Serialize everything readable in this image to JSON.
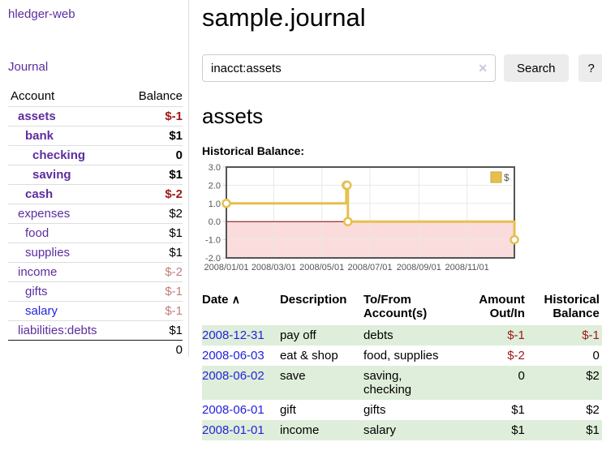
{
  "colors": {
    "accent_purple": "#5c2d9e",
    "link_blue": "#2323dd",
    "negative_strong": "#9e1818",
    "negative_pale": "#c27d7d",
    "row_green": "#deeeda",
    "chart_line": "#e6bf4e",
    "chart_border": "#545454",
    "zero_line": "#8b0000",
    "negative_region_fill": "#fbdcdc"
  },
  "sidebar": {
    "brand": "hledger-web",
    "nav_journal": "Journal",
    "table": {
      "account_header": "Account",
      "balance_header": "Balance",
      "rows": [
        {
          "name": "assets",
          "balance": "$-1",
          "level": 1,
          "bold": true,
          "balance_style": "neg-strong"
        },
        {
          "name": "bank",
          "balance": "$1",
          "level": 2,
          "bold": true,
          "balance_style": ""
        },
        {
          "name": "checking",
          "balance": "0",
          "level": 3,
          "bold": true,
          "balance_style": ""
        },
        {
          "name": "saving",
          "balance": "$1",
          "level": 3,
          "bold": true,
          "balance_style": ""
        },
        {
          "name": "cash",
          "balance": "$-2",
          "level": 2,
          "bold": true,
          "balance_style": "neg-strong"
        },
        {
          "name": "expenses",
          "balance": "$2",
          "level": 1,
          "bold": false,
          "balance_style": ""
        },
        {
          "name": "food",
          "balance": "$1",
          "level": 2,
          "bold": false,
          "balance_style": ""
        },
        {
          "name": "supplies",
          "balance": "$1",
          "level": 2,
          "bold": false,
          "balance_style": ""
        },
        {
          "name": "income",
          "balance": "$-2",
          "level": 1,
          "bold": false,
          "balance_style": "neg-pale"
        },
        {
          "name": "gifts",
          "balance": "$-1",
          "level": 2,
          "bold": false,
          "balance_style": "neg-pale"
        },
        {
          "name": "salary",
          "balance": "$-1",
          "level": 2,
          "bold": false,
          "balance_style": "neg-pale",
          "link_color": "blue"
        },
        {
          "name": "liabilities:debts",
          "balance": "$1",
          "level": 1,
          "bold": false,
          "balance_style": ""
        }
      ],
      "total": "0"
    }
  },
  "main": {
    "title": "sample.journal",
    "search": {
      "value": "inacct:assets",
      "clear_icon": "✕",
      "button_label": "Search",
      "help_label": "?"
    },
    "account_heading": "assets",
    "chart_label": "Historical Balance:"
  },
  "chart_data": {
    "type": "line",
    "title": "Historical Balance",
    "step": true,
    "series": [
      {
        "name": "$",
        "color": "#e6bf4e",
        "points": [
          [
            "2008-01-01",
            1
          ],
          [
            "2008-06-01",
            2
          ],
          [
            "2008-06-02",
            2
          ],
          [
            "2008-06-03",
            0
          ],
          [
            "2008-12-31",
            -1
          ]
        ]
      }
    ],
    "x_range": [
      "2008-01-01",
      "2008-12-31"
    ],
    "ylim": [
      -2,
      3
    ],
    "y_ticks": [
      3,
      2,
      1,
      0,
      -1,
      -2
    ],
    "y_tick_labels": [
      "3.0",
      "2.0",
      "1.0",
      "0.0",
      "-1.0",
      "-2.0"
    ],
    "x_ticks": [
      "2008-01-01",
      "2008-03-01",
      "2008-05-01",
      "2008-07-01",
      "2008-09-01",
      "2008-11-01"
    ],
    "x_tick_labels": [
      "2008/01/01",
      "2008/03/01",
      "2008/05/01",
      "2008/07/01",
      "2008/09/01",
      "2008/11/01"
    ],
    "legend": {
      "label": "$",
      "position": "top-right"
    },
    "grid": true,
    "marker": "hollow-circle"
  },
  "transactions": {
    "headers": {
      "date": "Date",
      "sort_icon": "∧",
      "description": "Description",
      "accounts_line1": "To/From",
      "accounts_line2": "Account(s)",
      "amount_line1": "Amount",
      "amount_line2": "Out/In",
      "balance_line1": "Historical",
      "balance_line2": "Balance"
    },
    "rows": [
      {
        "date": "2008-12-31",
        "description": "pay off",
        "accounts": [
          "debts"
        ],
        "amount": "$-1",
        "balance": "$-1"
      },
      {
        "date": "2008-06-03",
        "description": "eat & shop",
        "accounts": [
          "food, supplies"
        ],
        "amount": "$-2",
        "balance": "0"
      },
      {
        "date": "2008-06-02",
        "description": "save",
        "accounts": [
          "saving,",
          "checking"
        ],
        "amount": "0",
        "balance": "$2"
      },
      {
        "date": "2008-06-01",
        "description": "gift",
        "accounts": [
          "gifts"
        ],
        "amount": "$1",
        "balance": "$2"
      },
      {
        "date": "2008-01-01",
        "description": "income",
        "accounts": [
          "salary"
        ],
        "amount": "$1",
        "balance": "$1"
      }
    ]
  }
}
